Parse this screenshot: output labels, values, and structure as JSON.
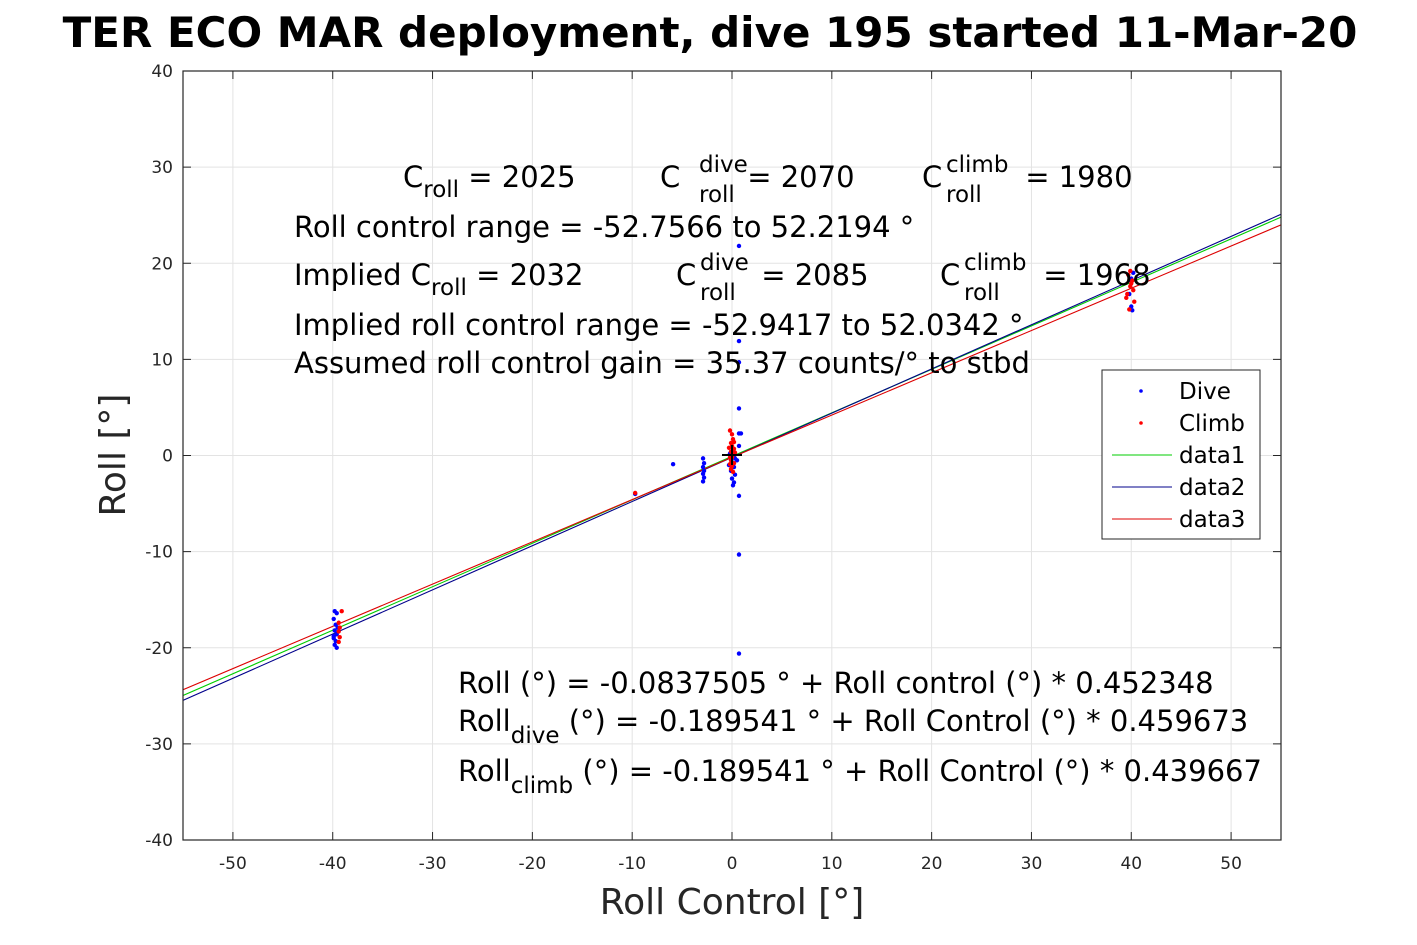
{
  "chart_data": {
    "type": "scatter",
    "title": "TER ECO MAR deployment, dive 195 started 11-Mar-20",
    "xlabel": "Roll Control [°]",
    "ylabel": "Roll [°]",
    "xlim": [
      -55,
      55
    ],
    "ylim": [
      -40,
      40
    ],
    "xticks": [
      -50,
      -40,
      -30,
      -20,
      -10,
      0,
      10,
      20,
      30,
      40,
      50
    ],
    "yticks": [
      -40,
      -30,
      -20,
      -10,
      0,
      10,
      20,
      30,
      40
    ],
    "grid": true,
    "legend_position": "right",
    "series": [
      {
        "name": "Dive",
        "kind": "points",
        "color": "#0000ff",
        "points": [
          [
            -39.8,
            -16.2
          ],
          [
            -39.6,
            -16.4
          ],
          [
            -39.9,
            -17.0
          ],
          [
            -39.7,
            -17.6
          ],
          [
            -39.8,
            -18.2
          ],
          [
            -39.6,
            -18.6
          ],
          [
            -39.9,
            -19.0
          ],
          [
            -39.7,
            -19.3
          ],
          [
            -39.8,
            -19.7
          ],
          [
            -39.6,
            -20.0
          ],
          [
            -39.5,
            -17.9
          ],
          [
            -39.9,
            -18.8
          ],
          [
            -9.7,
            -4.0
          ],
          [
            -5.9,
            -0.9
          ],
          [
            -2.9,
            -0.3
          ],
          [
            -2.8,
            -0.8
          ],
          [
            -2.9,
            -1.2
          ],
          [
            -2.8,
            -1.6
          ],
          [
            -2.9,
            -1.9
          ],
          [
            -2.8,
            -2.3
          ],
          [
            -2.9,
            -2.7
          ],
          [
            0.7,
            21.8
          ],
          [
            0.7,
            11.9
          ],
          [
            0.7,
            9.7
          ],
          [
            0.7,
            4.9
          ],
          [
            0.7,
            2.3
          ],
          [
            0.9,
            2.3
          ],
          [
            0.7,
            1.0
          ],
          [
            0.1,
            0.6
          ],
          [
            -0.2,
            0.2
          ],
          [
            0.3,
            -0.3
          ],
          [
            0.0,
            -0.7
          ],
          [
            0.2,
            -1.2
          ],
          [
            -0.1,
            -1.6
          ],
          [
            0.3,
            -2.0
          ],
          [
            0.0,
            -2.4
          ],
          [
            0.2,
            -2.8
          ],
          [
            0.1,
            -3.1
          ],
          [
            0.7,
            -4.2
          ],
          [
            0.7,
            -10.3
          ],
          [
            0.7,
            -20.6
          ],
          [
            0.5,
            -0.5
          ],
          [
            -0.3,
            -1.0
          ],
          [
            40.1,
            15.1
          ],
          [
            40.0,
            15.5
          ],
          [
            39.8,
            16.8
          ],
          [
            40.0,
            18.4
          ],
          [
            40.2,
            19.0
          ]
        ]
      },
      {
        "name": "Climb",
        "kind": "points",
        "color": "#ff0000",
        "points": [
          [
            -39.1,
            -16.2
          ],
          [
            -39.4,
            -17.4
          ],
          [
            -39.3,
            -17.9
          ],
          [
            -39.4,
            -18.3
          ],
          [
            -39.3,
            -18.9
          ],
          [
            -39.4,
            -19.4
          ],
          [
            -9.7,
            -3.9
          ],
          [
            -0.2,
            2.6
          ],
          [
            0.0,
            2.2
          ],
          [
            0.1,
            1.7
          ],
          [
            -0.1,
            1.3
          ],
          [
            0.0,
            1.0
          ],
          [
            0.2,
            0.7
          ],
          [
            -0.1,
            0.4
          ],
          [
            0.1,
            0.1
          ],
          [
            0.0,
            -0.2
          ],
          [
            -0.1,
            -0.5
          ],
          [
            0.2,
            -0.8
          ],
          [
            0.0,
            -1.1
          ],
          [
            -0.1,
            -1.4
          ],
          [
            0.1,
            -1.7
          ],
          [
            -0.2,
            -0.9
          ],
          [
            0.3,
            0.3
          ],
          [
            -0.3,
            0.8
          ],
          [
            0.2,
            1.4
          ],
          [
            -0.2,
            -0.2
          ],
          [
            39.9,
            19.2
          ],
          [
            39.7,
            18.8
          ],
          [
            40.1,
            18.2
          ],
          [
            39.9,
            17.6
          ],
          [
            40.2,
            17.2
          ],
          [
            39.6,
            16.8
          ],
          [
            39.5,
            16.4
          ],
          [
            40.3,
            16.0
          ],
          [
            39.8,
            15.2
          ],
          [
            40.0,
            17.9
          ]
        ]
      },
      {
        "name": "data1",
        "kind": "line",
        "color": "#00cc00",
        "intercept": -0.0837505,
        "slope": 0.452348
      },
      {
        "name": "data2",
        "kind": "line",
        "color": "#00008b",
        "intercept": -0.189541,
        "slope": 0.459673
      },
      {
        "name": "data3",
        "kind": "line",
        "color": "#dd0000",
        "intercept": -0.189541,
        "slope": 0.439667
      }
    ],
    "annotations": {
      "c_roll": {
        "base": "C",
        "sub": "roll",
        "rest": " = 2025"
      },
      "c_roll_dive": {
        "base": "C",
        "sup": "dive",
        "sub": "roll",
        "rest": " = 2070"
      },
      "c_roll_climb": {
        "base": "C",
        "sup": "climb",
        "sub": "roll",
        "rest": " = 1980"
      },
      "roll_control_range": "Roll control range = -52.7566 to 52.2194 °",
      "implied_c_roll": {
        "pre": "Implied C",
        "sub": "roll",
        "rest": " = 2032"
      },
      "implied_c_roll_dive": {
        "base": "C",
        "sup": "dive",
        "sub": "roll",
        "rest": " = 2085"
      },
      "implied_c_roll_climb": {
        "base": "C",
        "sup": "climb",
        "sub": "roll",
        "rest": " = 1968"
      },
      "implied_range": "Implied roll control range = -52.9417 to 52.0342 °",
      "gain": "Assumed roll control gain = 35.37 counts/° to stbd",
      "fit_all": "Roll (°) = -0.0837505 ° + Roll control (°) * 0.452348",
      "fit_dive": {
        "base": "Roll",
        "sub": "dive",
        "rest": " (°) = -0.189541 ° + Roll Control (°) * 0.459673"
      },
      "fit_climb": {
        "base": "Roll",
        "sub": "climb",
        "rest": " (°) = -0.189541 ° + Roll Control (°) * 0.439667"
      }
    }
  }
}
